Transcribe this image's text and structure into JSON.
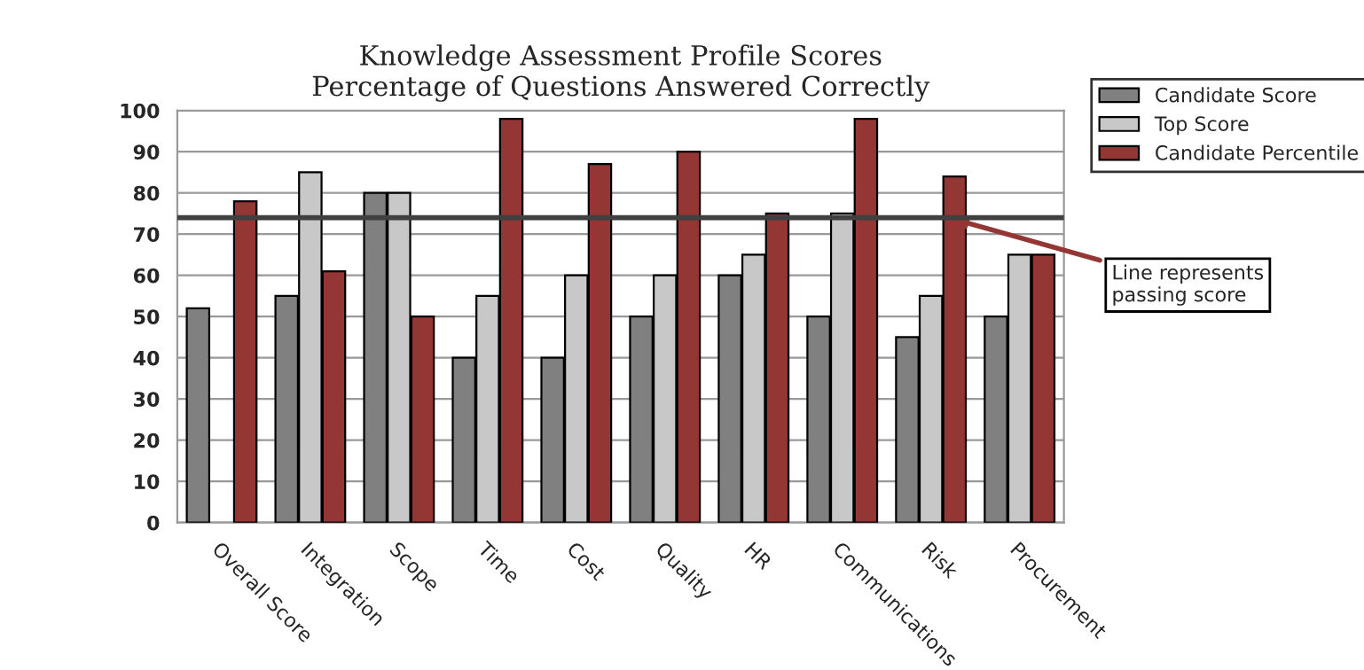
{
  "chart_data": {
    "type": "bar",
    "title": "Knowledge Assessment Profile Scores\nPercentage of Questions Answered Correctly",
    "categories": [
      "Overall Score",
      "Integration",
      "Scope",
      "Time",
      "Cost",
      "Quality",
      "HR",
      "Communications",
      "Risk",
      "Procurement"
    ],
    "series": [
      {
        "name": "Candidate Score",
        "color": "#808080",
        "values": [
          52,
          55,
          80,
          40,
          40,
          50,
          60,
          50,
          45,
          50
        ]
      },
      {
        "name": "Top Score",
        "color": "#c8c8c8",
        "values": [
          null,
          85,
          80,
          55,
          60,
          60,
          65,
          75,
          55,
          65
        ]
      },
      {
        "name": "Candidate Percentile",
        "color": "#943634",
        "values": [
          78,
          61,
          50,
          98,
          87,
          90,
          75,
          98,
          84,
          65
        ]
      }
    ],
    "ylim": [
      0,
      100
    ],
    "yticks": [
      0,
      10,
      20,
      30,
      40,
      50,
      60,
      70,
      80,
      90,
      100
    ],
    "grid": "y",
    "legend": "top right",
    "ref_lines": [
      {
        "axis": "y",
        "value": 74,
        "label": "Line represents\npassing score",
        "color": "#404040"
      }
    ]
  }
}
